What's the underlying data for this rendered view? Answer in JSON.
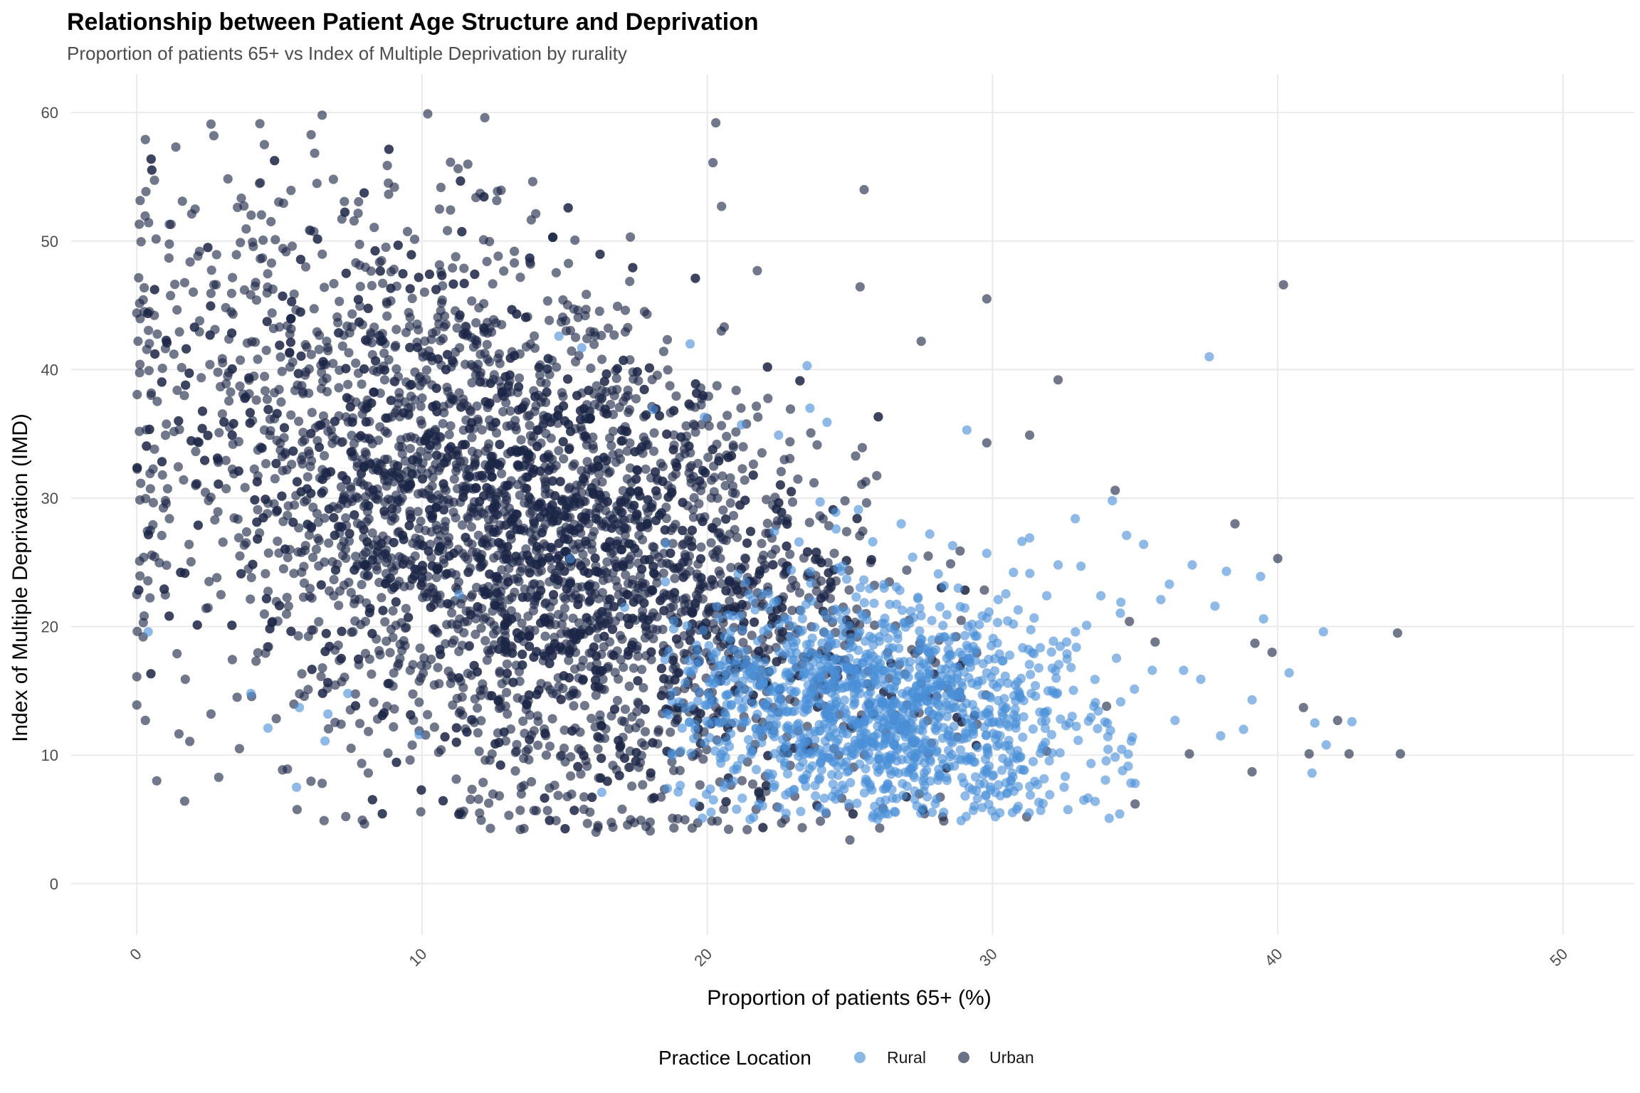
{
  "chart_data": {
    "type": "scatter",
    "title": "Relationship between Patient Age Structure and Deprivation",
    "subtitle": "Proportion of patients 65+ vs Index of Multiple Deprivation by rurality",
    "xlabel": "Proportion of patients 65+ (%)",
    "ylabel": "Index of Multiple Deprivation (IMD)",
    "xlim": [
      -2.3,
      52.5
    ],
    "ylim": [
      -4.0,
      63.0
    ],
    "x_ticks": [
      0,
      10,
      20,
      30,
      40,
      50
    ],
    "x_tick_labels": [
      "0",
      "10",
      "20",
      "30",
      "40",
      "50"
    ],
    "y_ticks": [
      0,
      10,
      20,
      30,
      40,
      50,
      60
    ],
    "y_tick_labels": [
      "0",
      "10",
      "20",
      "30",
      "40",
      "50",
      "60"
    ],
    "grid": true,
    "legend": {
      "title": "Practice Location",
      "placement": "bottom"
    },
    "series": [
      {
        "name": "Rural",
        "color": "#4a90d9",
        "points": [
          [
            0.4,
            19.6
          ],
          [
            4.0,
            14.8
          ],
          [
            4.6,
            12.1
          ],
          [
            5.6,
            7.5
          ],
          [
            5.7,
            13.7
          ],
          [
            6.6,
            11.1
          ],
          [
            6.7,
            13.2
          ],
          [
            7.4,
            14.8
          ],
          [
            9.9,
            11.6
          ],
          [
            11.3,
            22.5
          ],
          [
            14.8,
            42.6
          ],
          [
            15.2,
            25.3
          ],
          [
            15.6,
            41.7
          ],
          [
            16.3,
            7.1
          ],
          [
            17.1,
            21.5
          ],
          [
            18.1,
            36.9
          ],
          [
            18.6,
            7.4
          ],
          [
            19.4,
            42.0
          ],
          [
            19.9,
            36.3
          ],
          [
            21.2,
            35.7
          ],
          [
            21.5,
            5.0
          ],
          [
            22.5,
            34.9
          ],
          [
            23.5,
            40.3
          ],
          [
            23.6,
            37.0
          ],
          [
            24.2,
            35.9
          ],
          [
            24.5,
            28.9
          ],
          [
            25.3,
            29.1
          ],
          [
            25.8,
            26.6
          ],
          [
            26.2,
            23.0
          ],
          [
            26.8,
            28.0
          ],
          [
            27.2,
            25.4
          ],
          [
            27.8,
            27.2
          ],
          [
            28.1,
            24.1
          ],
          [
            28.6,
            26.3
          ],
          [
            28.9,
            4.9
          ],
          [
            29.1,
            35.3
          ],
          [
            29.3,
            7.3
          ],
          [
            29.8,
            25.7
          ],
          [
            30.2,
            22.1
          ],
          [
            30.5,
            7.0
          ],
          [
            30.9,
            21.3
          ],
          [
            31.3,
            26.9
          ],
          [
            31.5,
            15.4
          ],
          [
            31.9,
            22.4
          ],
          [
            32.3,
            24.8
          ],
          [
            32.6,
            18.8
          ],
          [
            32.9,
            28.4
          ],
          [
            33.1,
            24.7
          ],
          [
            33.3,
            20.1
          ],
          [
            33.6,
            6.4
          ],
          [
            33.8,
            22.4
          ],
          [
            34.2,
            29.8
          ],
          [
            34.5,
            21.9
          ],
          [
            34.7,
            27.1
          ],
          [
            35.0,
            7.8
          ],
          [
            35.3,
            26.4
          ],
          [
            35.6,
            16.6
          ],
          [
            35.9,
            22.1
          ],
          [
            36.2,
            23.3
          ],
          [
            36.4,
            12.7
          ],
          [
            36.7,
            16.6
          ],
          [
            37.0,
            24.8
          ],
          [
            37.3,
            15.9
          ],
          [
            37.6,
            41.0
          ],
          [
            37.8,
            21.6
          ],
          [
            38.0,
            11.5
          ],
          [
            38.2,
            24.3
          ],
          [
            38.8,
            12.0
          ],
          [
            39.1,
            14.3
          ],
          [
            39.4,
            23.9
          ],
          [
            39.5,
            20.6
          ],
          [
            40.4,
            16.4
          ],
          [
            41.3,
            12.5
          ],
          [
            41.6,
            19.6
          ],
          [
            41.7,
            10.8
          ],
          [
            41.2,
            8.6
          ],
          [
            42.6,
            12.6
          ],
          [
            33.2,
            6.5
          ],
          [
            28.3,
            19.2
          ],
          [
            24.1,
            12.4
          ]
        ],
        "cluster": {
          "x_range": [
            18.5,
            33.5
          ],
          "y_range": [
            5.0,
            24.0
          ],
          "count": 1300
        }
      },
      {
        "name": "Urban",
        "color": "#1c2545",
        "points": [
          [
            0.0,
            44.4
          ],
          [
            0.0,
            22.5
          ],
          [
            0.0,
            16.1
          ],
          [
            0.0,
            13.9
          ],
          [
            0.1,
            25.1
          ],
          [
            0.3,
            57.9
          ],
          [
            0.3,
            12.7
          ],
          [
            0.5,
            38.0
          ],
          [
            0.7,
            8.0
          ],
          [
            0.9,
            31.8
          ],
          [
            0.9,
            40.1
          ],
          [
            1.2,
            51.3
          ],
          [
            1.3,
            41.2
          ],
          [
            1.7,
            15.9
          ],
          [
            2.2,
            49.2
          ],
          [
            2.6,
            59.1
          ],
          [
            2.7,
            58.2
          ],
          [
            2.7,
            46.6
          ],
          [
            2.6,
            13.2
          ],
          [
            3.6,
            10.5
          ],
          [
            6.5,
            59.8
          ],
          [
            10.2,
            59.9
          ],
          [
            12.2,
            59.6
          ],
          [
            20.3,
            59.2
          ],
          [
            20.2,
            56.1
          ],
          [
            20.5,
            52.7
          ],
          [
            25.5,
            54.0
          ],
          [
            29.8,
            45.5
          ],
          [
            27.5,
            42.2
          ],
          [
            29.8,
            34.3
          ],
          [
            31.3,
            34.9
          ],
          [
            32.3,
            39.2
          ],
          [
            34.3,
            30.6
          ],
          [
            38.5,
            28.0
          ],
          [
            40.2,
            46.6
          ],
          [
            40.0,
            25.3
          ],
          [
            39.8,
            18.0
          ],
          [
            39.2,
            18.7
          ],
          [
            39.1,
            8.7
          ],
          [
            40.9,
            13.7
          ],
          [
            41.1,
            10.1
          ],
          [
            42.1,
            12.7
          ],
          [
            42.5,
            10.1
          ],
          [
            44.2,
            19.5
          ],
          [
            44.3,
            10.1
          ],
          [
            35.0,
            6.2
          ],
          [
            36.9,
            10.1
          ],
          [
            31.2,
            5.2
          ],
          [
            25.0,
            3.4
          ],
          [
            16.1,
            4.0
          ],
          [
            18.0,
            4.1
          ],
          [
            21.4,
            4.2
          ],
          [
            35.7,
            18.8
          ],
          [
            34.8,
            20.4
          ],
          [
            34.0,
            13.8
          ],
          [
            31.9,
            10.3
          ]
        ],
        "cluster": {
          "x_center": 13.5,
          "y_center": 27.0,
          "count": 4200
        }
      }
    ]
  }
}
